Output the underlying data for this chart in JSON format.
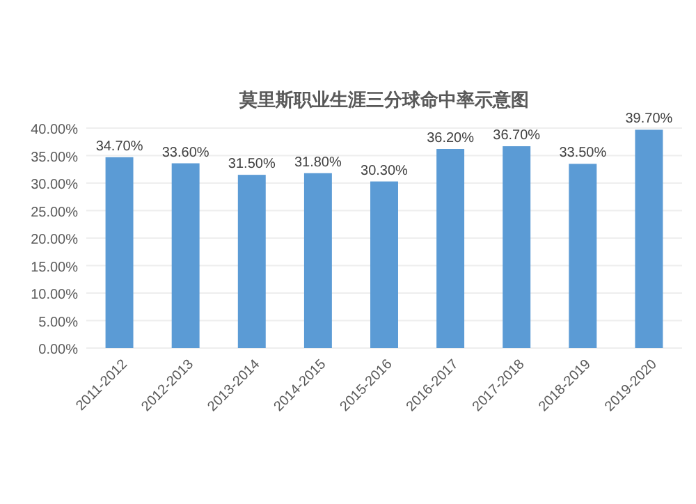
{
  "chart_data": {
    "type": "bar",
    "title": "莫里斯职业生涯三分球命中率示意图",
    "categories": [
      "2011-2012",
      "2012-2013",
      "2013-2014",
      "2014-2015",
      "2015-2016",
      "2016-2017",
      "2017-2018",
      "2018-2019",
      "2019-2020"
    ],
    "values": [
      34.7,
      33.6,
      31.5,
      31.8,
      30.3,
      36.2,
      36.7,
      33.5,
      39.7
    ],
    "value_labels": [
      "34.70%",
      "33.60%",
      "31.50%",
      "31.80%",
      "30.30%",
      "36.20%",
      "36.70%",
      "33.50%",
      "39.70%"
    ],
    "color": "#5b9bd5",
    "ylim": [
      0,
      40
    ],
    "yticks": [
      {
        "value": 0,
        "label": "0.00%"
      },
      {
        "value": 5,
        "label": "5.00%"
      },
      {
        "value": 10,
        "label": "10.00%"
      },
      {
        "value": 15,
        "label": "15.00%"
      },
      {
        "value": 20,
        "label": "20.00%"
      },
      {
        "value": 25,
        "label": "25.00%"
      },
      {
        "value": 30,
        "label": "30.00%"
      },
      {
        "value": 35,
        "label": "35.00%"
      },
      {
        "value": 40,
        "label": "40.00%"
      }
    ],
    "grid": "y"
  }
}
